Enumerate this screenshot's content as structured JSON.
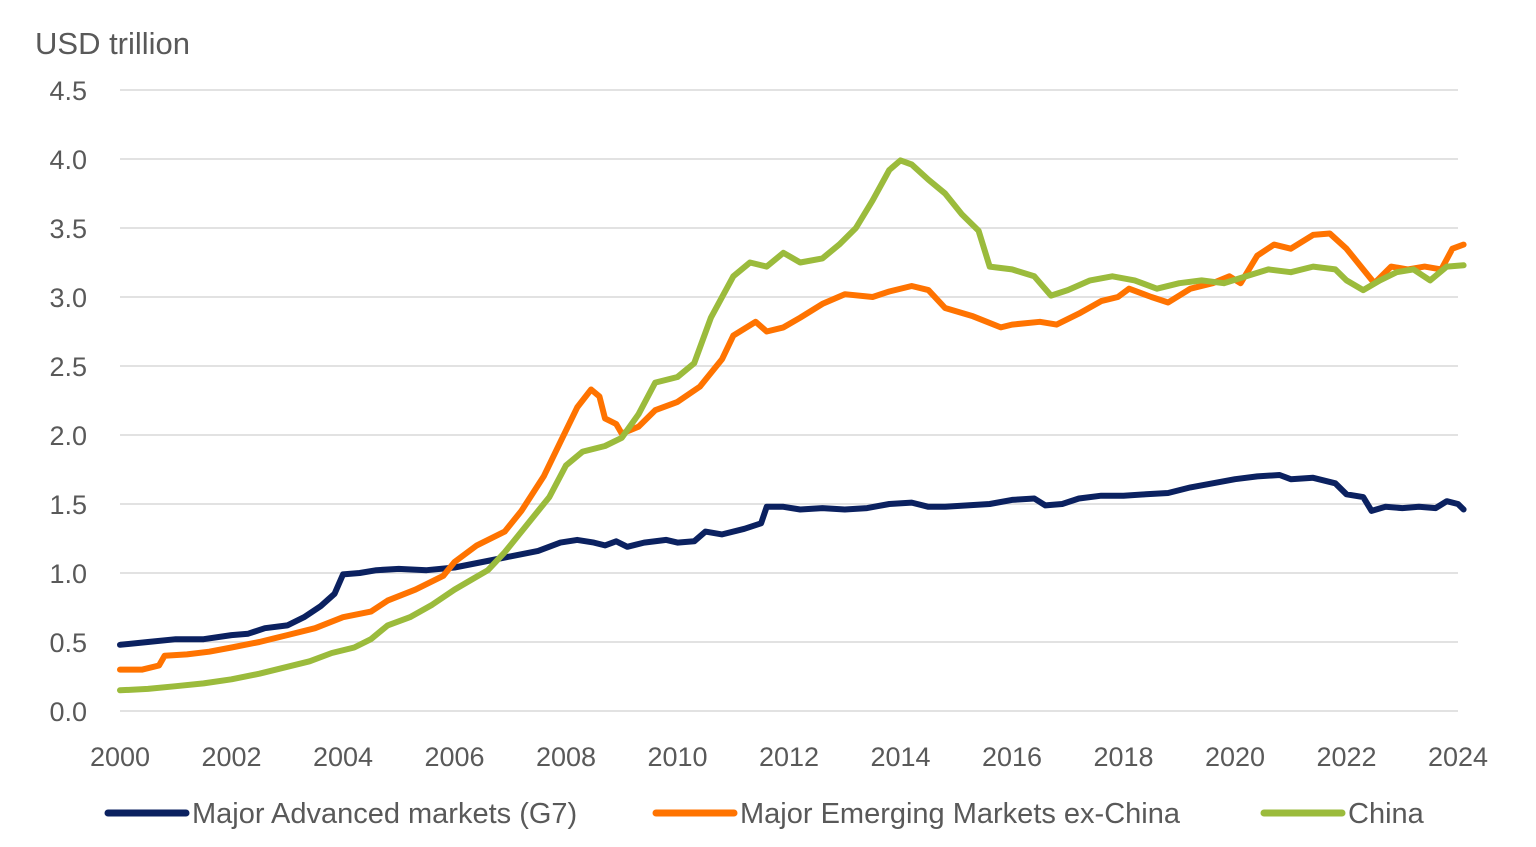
{
  "chart_data": {
    "type": "line",
    "title": "",
    "ylabel": "USD trillion",
    "xlabel": "",
    "xlim": [
      2000,
      2024
    ],
    "ylim": [
      0,
      4.5
    ],
    "yticks": [
      0.0,
      0.5,
      1.0,
      1.5,
      2.0,
      2.5,
      3.0,
      3.5,
      4.0,
      4.5
    ],
    "ytick_labels": [
      "0.0",
      "0.5",
      "1.0",
      "1.5",
      "2.0",
      "2.5",
      "3.0",
      "3.5",
      "4.0",
      "4.5"
    ],
    "xticks": [
      2000,
      2002,
      2004,
      2006,
      2008,
      2010,
      2012,
      2014,
      2016,
      2018,
      2020,
      2022,
      2024
    ],
    "xtick_labels": [
      "2000",
      "2002",
      "2004",
      "2006",
      "2008",
      "2010",
      "2012",
      "2014",
      "2016",
      "2018",
      "2020",
      "2022",
      "2024"
    ],
    "grid": true,
    "legend_position": "bottom",
    "series": [
      {
        "name": "Major Advanced markets (G7)",
        "color": "#0b2160",
        "points": [
          [
            2000.0,
            0.48
          ],
          [
            2000.5,
            0.5
          ],
          [
            2001.0,
            0.52
          ],
          [
            2001.5,
            0.52
          ],
          [
            2002.0,
            0.55
          ],
          [
            2002.3,
            0.56
          ],
          [
            2002.6,
            0.6
          ],
          [
            2003.0,
            0.62
          ],
          [
            2003.3,
            0.68
          ],
          [
            2003.6,
            0.76
          ],
          [
            2003.85,
            0.85
          ],
          [
            2004.0,
            0.99
          ],
          [
            2004.3,
            1.0
          ],
          [
            2004.6,
            1.02
          ],
          [
            2005.0,
            1.03
          ],
          [
            2005.5,
            1.02
          ],
          [
            2006.0,
            1.04
          ],
          [
            2006.5,
            1.08
          ],
          [
            2007.0,
            1.12
          ],
          [
            2007.5,
            1.16
          ],
          [
            2007.9,
            1.22
          ],
          [
            2008.2,
            1.24
          ],
          [
            2008.5,
            1.22
          ],
          [
            2008.7,
            1.2
          ],
          [
            2008.9,
            1.23
          ],
          [
            2009.1,
            1.19
          ],
          [
            2009.4,
            1.22
          ],
          [
            2009.8,
            1.24
          ],
          [
            2010.0,
            1.22
          ],
          [
            2010.3,
            1.23
          ],
          [
            2010.5,
            1.3
          ],
          [
            2010.8,
            1.28
          ],
          [
            2011.2,
            1.32
          ],
          [
            2011.5,
            1.36
          ],
          [
            2011.6,
            1.48
          ],
          [
            2011.9,
            1.48
          ],
          [
            2012.2,
            1.46
          ],
          [
            2012.6,
            1.47
          ],
          [
            2013.0,
            1.46
          ],
          [
            2013.4,
            1.47
          ],
          [
            2013.8,
            1.5
          ],
          [
            2014.2,
            1.51
          ],
          [
            2014.5,
            1.48
          ],
          [
            2014.8,
            1.48
          ],
          [
            2015.2,
            1.49
          ],
          [
            2015.6,
            1.5
          ],
          [
            2016.0,
            1.53
          ],
          [
            2016.4,
            1.54
          ],
          [
            2016.6,
            1.49
          ],
          [
            2016.9,
            1.5
          ],
          [
            2017.2,
            1.54
          ],
          [
            2017.6,
            1.56
          ],
          [
            2018.0,
            1.56
          ],
          [
            2018.4,
            1.57
          ],
          [
            2018.8,
            1.58
          ],
          [
            2019.2,
            1.62
          ],
          [
            2019.6,
            1.65
          ],
          [
            2020.0,
            1.68
          ],
          [
            2020.4,
            1.7
          ],
          [
            2020.8,
            1.71
          ],
          [
            2021.0,
            1.68
          ],
          [
            2021.4,
            1.69
          ],
          [
            2021.8,
            1.65
          ],
          [
            2022.0,
            1.57
          ],
          [
            2022.3,
            1.55
          ],
          [
            2022.45,
            1.45
          ],
          [
            2022.7,
            1.48
          ],
          [
            2023.0,
            1.47
          ],
          [
            2023.3,
            1.48
          ],
          [
            2023.6,
            1.47
          ],
          [
            2023.8,
            1.52
          ],
          [
            2024.0,
            1.5
          ],
          [
            2024.1,
            1.46
          ]
        ]
      },
      {
        "name": "Major Emerging Markets ex-China",
        "color": "#ff7300",
        "points": [
          [
            2000.0,
            0.3
          ],
          [
            2000.4,
            0.3
          ],
          [
            2000.7,
            0.33
          ],
          [
            2000.8,
            0.4
          ],
          [
            2001.2,
            0.41
          ],
          [
            2001.6,
            0.43
          ],
          [
            2002.0,
            0.46
          ],
          [
            2002.5,
            0.5
          ],
          [
            2003.0,
            0.55
          ],
          [
            2003.5,
            0.6
          ],
          [
            2004.0,
            0.68
          ],
          [
            2004.5,
            0.72
          ],
          [
            2004.8,
            0.8
          ],
          [
            2005.3,
            0.88
          ],
          [
            2005.8,
            0.98
          ],
          [
            2006.0,
            1.08
          ],
          [
            2006.4,
            1.2
          ],
          [
            2006.9,
            1.3
          ],
          [
            2007.2,
            1.45
          ],
          [
            2007.6,
            1.7
          ],
          [
            2007.9,
            1.95
          ],
          [
            2008.2,
            2.2
          ],
          [
            2008.45,
            2.33
          ],
          [
            2008.6,
            2.28
          ],
          [
            2008.7,
            2.12
          ],
          [
            2008.9,
            2.08
          ],
          [
            2009.0,
            2.01
          ],
          [
            2009.3,
            2.06
          ],
          [
            2009.6,
            2.18
          ],
          [
            2010.0,
            2.24
          ],
          [
            2010.4,
            2.35
          ],
          [
            2010.8,
            2.55
          ],
          [
            2011.0,
            2.72
          ],
          [
            2011.4,
            2.82
          ],
          [
            2011.6,
            2.75
          ],
          [
            2011.9,
            2.78
          ],
          [
            2012.2,
            2.85
          ],
          [
            2012.6,
            2.95
          ],
          [
            2013.0,
            3.02
          ],
          [
            2013.5,
            3.0
          ],
          [
            2013.8,
            3.04
          ],
          [
            2014.2,
            3.08
          ],
          [
            2014.5,
            3.05
          ],
          [
            2014.8,
            2.92
          ],
          [
            2015.3,
            2.86
          ],
          [
            2015.8,
            2.78
          ],
          [
            2016.0,
            2.8
          ],
          [
            2016.5,
            2.82
          ],
          [
            2016.8,
            2.8
          ],
          [
            2017.2,
            2.88
          ],
          [
            2017.6,
            2.97
          ],
          [
            2017.9,
            3.0
          ],
          [
            2018.1,
            3.06
          ],
          [
            2018.5,
            3.0
          ],
          [
            2018.8,
            2.96
          ],
          [
            2019.2,
            3.06
          ],
          [
            2019.6,
            3.1
          ],
          [
            2019.9,
            3.15
          ],
          [
            2020.1,
            3.1
          ],
          [
            2020.4,
            3.3
          ],
          [
            2020.7,
            3.38
          ],
          [
            2021.0,
            3.35
          ],
          [
            2021.4,
            3.45
          ],
          [
            2021.7,
            3.46
          ],
          [
            2022.0,
            3.35
          ],
          [
            2022.3,
            3.2
          ],
          [
            2022.5,
            3.1
          ],
          [
            2022.8,
            3.22
          ],
          [
            2023.1,
            3.2
          ],
          [
            2023.4,
            3.22
          ],
          [
            2023.7,
            3.2
          ],
          [
            2023.9,
            3.35
          ],
          [
            2024.1,
            3.38
          ]
        ]
      },
      {
        "name": "China",
        "color": "#9bbb3c",
        "points": [
          [
            2000.0,
            0.15
          ],
          [
            2000.5,
            0.16
          ],
          [
            2001.0,
            0.18
          ],
          [
            2001.5,
            0.2
          ],
          [
            2002.0,
            0.23
          ],
          [
            2002.5,
            0.27
          ],
          [
            2003.0,
            0.32
          ],
          [
            2003.4,
            0.36
          ],
          [
            2003.8,
            0.42
          ],
          [
            2004.2,
            0.46
          ],
          [
            2004.5,
            0.52
          ],
          [
            2004.8,
            0.62
          ],
          [
            2005.2,
            0.68
          ],
          [
            2005.6,
            0.77
          ],
          [
            2006.0,
            0.88
          ],
          [
            2006.3,
            0.95
          ],
          [
            2006.6,
            1.02
          ],
          [
            2006.9,
            1.15
          ],
          [
            2007.3,
            1.35
          ],
          [
            2007.7,
            1.55
          ],
          [
            2008.0,
            1.78
          ],
          [
            2008.3,
            1.88
          ],
          [
            2008.7,
            1.92
          ],
          [
            2009.0,
            1.98
          ],
          [
            2009.3,
            2.15
          ],
          [
            2009.6,
            2.38
          ],
          [
            2010.0,
            2.42
          ],
          [
            2010.3,
            2.52
          ],
          [
            2010.6,
            2.85
          ],
          [
            2011.0,
            3.15
          ],
          [
            2011.3,
            3.25
          ],
          [
            2011.6,
            3.22
          ],
          [
            2011.9,
            3.32
          ],
          [
            2012.2,
            3.25
          ],
          [
            2012.6,
            3.28
          ],
          [
            2012.9,
            3.38
          ],
          [
            2013.2,
            3.5
          ],
          [
            2013.5,
            3.7
          ],
          [
            2013.8,
            3.92
          ],
          [
            2014.0,
            3.99
          ],
          [
            2014.2,
            3.96
          ],
          [
            2014.5,
            3.85
          ],
          [
            2014.8,
            3.75
          ],
          [
            2015.1,
            3.6
          ],
          [
            2015.4,
            3.48
          ],
          [
            2015.6,
            3.22
          ],
          [
            2016.0,
            3.2
          ],
          [
            2016.4,
            3.15
          ],
          [
            2016.7,
            3.01
          ],
          [
            2017.0,
            3.05
          ],
          [
            2017.4,
            3.12
          ],
          [
            2017.8,
            3.15
          ],
          [
            2018.2,
            3.12
          ],
          [
            2018.6,
            3.06
          ],
          [
            2019.0,
            3.1
          ],
          [
            2019.4,
            3.12
          ],
          [
            2019.8,
            3.1
          ],
          [
            2020.2,
            3.15
          ],
          [
            2020.6,
            3.2
          ],
          [
            2021.0,
            3.18
          ],
          [
            2021.4,
            3.22
          ],
          [
            2021.8,
            3.2
          ],
          [
            2022.0,
            3.12
          ],
          [
            2022.3,
            3.05
          ],
          [
            2022.6,
            3.12
          ],
          [
            2022.9,
            3.18
          ],
          [
            2023.2,
            3.2
          ],
          [
            2023.5,
            3.12
          ],
          [
            2023.8,
            3.22
          ],
          [
            2024.1,
            3.23
          ]
        ]
      }
    ]
  }
}
